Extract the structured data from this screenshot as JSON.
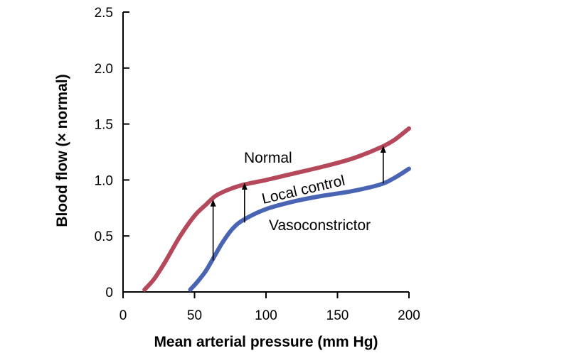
{
  "chart_data": {
    "type": "line",
    "title": "",
    "xlabel": "Mean arterial pressure (mm Hg)",
    "ylabel": "Blood flow (× normal)",
    "xlim": [
      0,
      200
    ],
    "ylim": [
      0,
      2.5
    ],
    "xticks": [
      0,
      50,
      100,
      150,
      200
    ],
    "xtick_labels": [
      "0",
      "50",
      "100",
      "150",
      "200"
    ],
    "yticks": [
      0,
      0.5,
      1.0,
      1.5,
      2.0,
      2.5
    ],
    "ytick_labels": [
      "0",
      "0.5",
      "1.0",
      "1.5",
      "2.0",
      "2.5"
    ],
    "grid": false,
    "series": [
      {
        "name": "Normal",
        "color": "#b5485a",
        "x": [
          15,
          22,
          30,
          40,
          50,
          58,
          65,
          75,
          85,
          100,
          120,
          140,
          160,
          180,
          190,
          200
        ],
        "y": [
          0.02,
          0.12,
          0.28,
          0.5,
          0.68,
          0.78,
          0.86,
          0.92,
          0.96,
          1.0,
          1.06,
          1.12,
          1.19,
          1.29,
          1.36,
          1.46
        ]
      },
      {
        "name": "Vasoconstrictor",
        "color": "#4a64b4",
        "x": [
          47,
          52,
          58,
          64,
          70,
          77,
          85,
          100,
          120,
          140,
          160,
          180,
          190,
          200
        ],
        "y": [
          0.02,
          0.09,
          0.19,
          0.32,
          0.45,
          0.57,
          0.65,
          0.74,
          0.81,
          0.86,
          0.9,
          0.96,
          1.02,
          1.1
        ]
      }
    ],
    "annotations": {
      "normal_label": "Normal",
      "local_control_label": "Local control",
      "vasoconstrictor_label": "Vasoconstrictor",
      "arrows": [
        {
          "x": 63,
          "from": 0.28,
          "to": 0.82
        },
        {
          "x": 85,
          "from": 0.62,
          "to": 0.97
        },
        {
          "x": 182,
          "from": 0.97,
          "to": 1.3
        }
      ]
    }
  }
}
